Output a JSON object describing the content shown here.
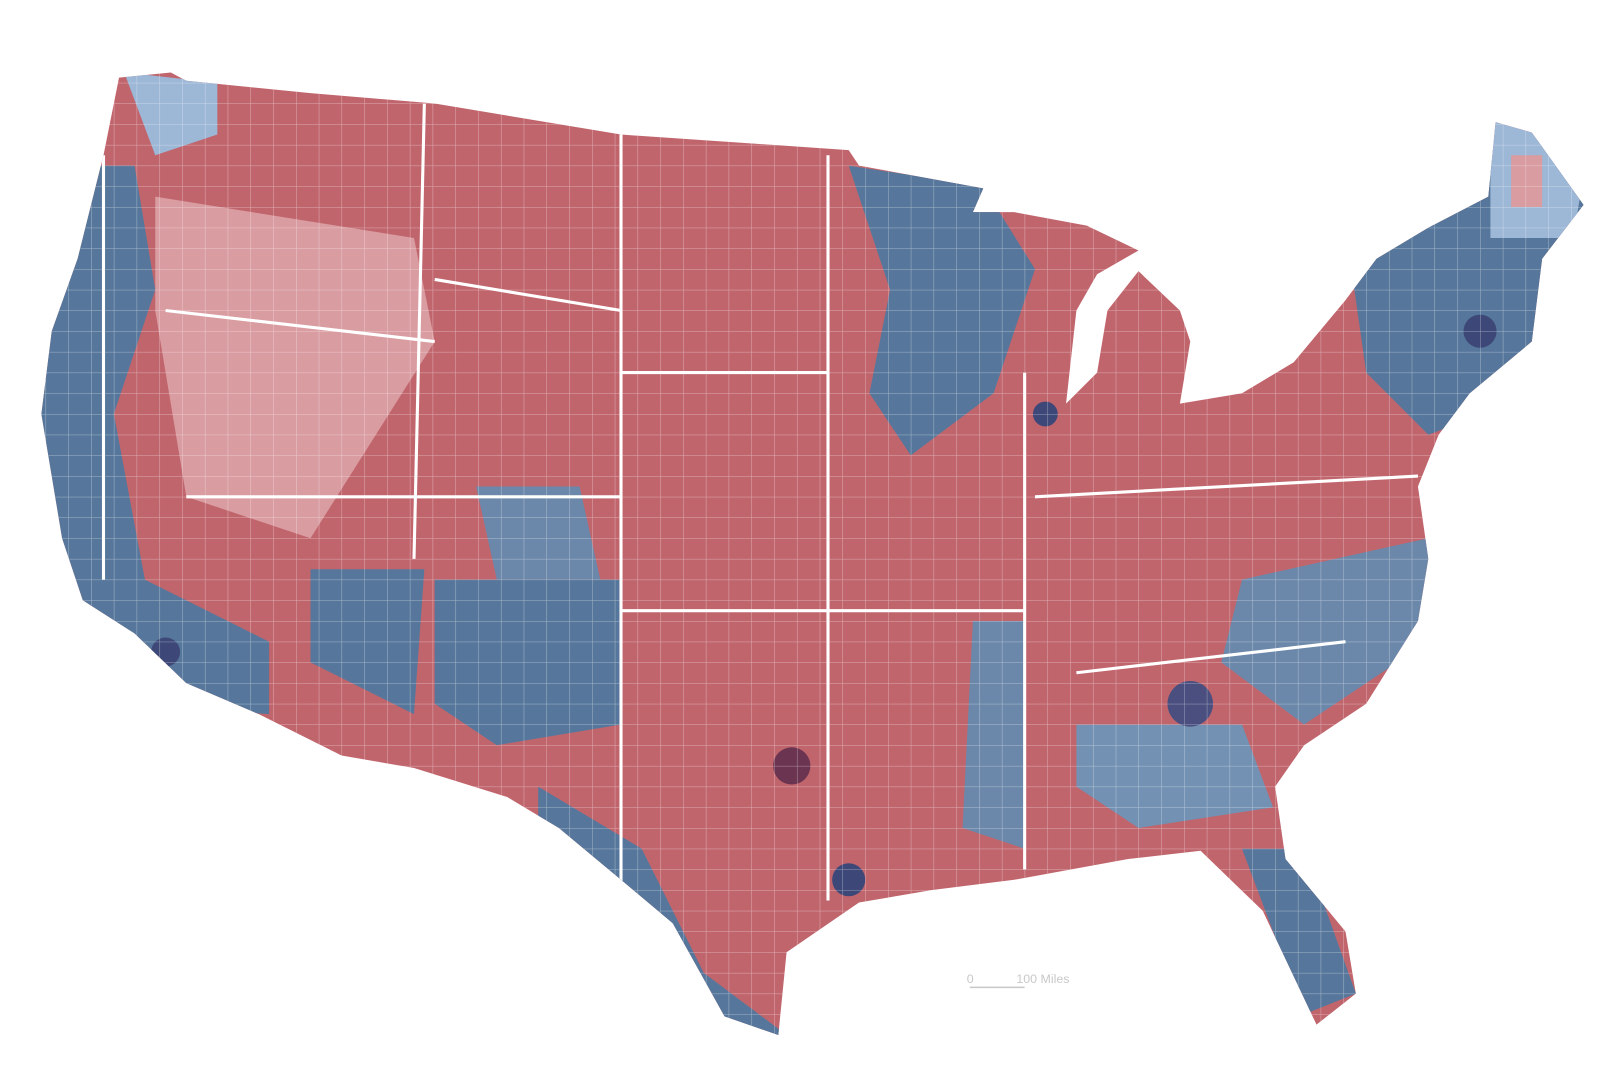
{
  "scale_bar": {
    "start": "0",
    "end": "100 Miles"
  }
}
